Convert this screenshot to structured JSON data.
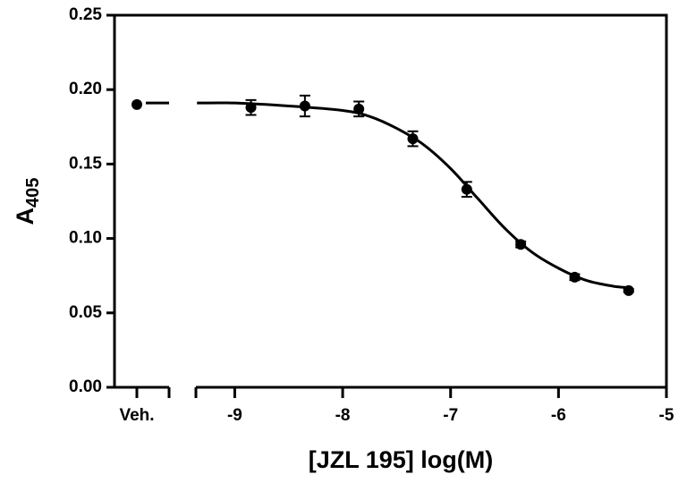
{
  "chart_data": {
    "type": "scatter",
    "x_label": "[JZL 195] log(M)",
    "y_label": "A",
    "y_label_subscript": "405",
    "vehicle": {
      "label": "Veh.",
      "value": 0.19
    },
    "xlim": [
      -9.36,
      -5
    ],
    "xticks": [
      -9,
      -8,
      -7,
      -6,
      -5
    ],
    "ylim": [
      0,
      0.25
    ],
    "yticks": [
      {
        "value": 0,
        "label": "0.00"
      },
      {
        "value": 0.05,
        "label": "0.05"
      },
      {
        "value": 0.1,
        "label": "0.10"
      },
      {
        "value": 0.15,
        "label": "0.15"
      },
      {
        "value": 0.2,
        "label": "0.20"
      },
      {
        "value": 0.25,
        "label": "0.25"
      }
    ],
    "color": "#000000",
    "series": [
      {
        "color": "#000000",
        "x": [
          -8.85,
          -8.35,
          -7.85,
          -7.35,
          -6.85,
          -6.35,
          -5.85,
          -5.35
        ],
        "values": [
          0.188,
          0.189,
          0.187,
          0.167,
          0.133,
          0.096,
          0.074,
          0.065
        ],
        "errors": [
          0.005,
          0.007,
          0.005,
          0.005,
          0.005,
          0.002,
          0.002,
          0.001
        ]
      }
    ],
    "fit": {
      "x": [
        -9.35,
        -9,
        -8.5,
        -8,
        -7.75,
        -7.5,
        -7.25,
        -7,
        -6.75,
        -6.5,
        -6.25,
        -6,
        -5.75,
        -5.5,
        -5.35
      ],
      "values": [
        0.191,
        0.191,
        0.189,
        0.186,
        0.182,
        0.174,
        0.163,
        0.147,
        0.127,
        0.107,
        0.091,
        0.08,
        0.072,
        0.068,
        0.067
      ]
    }
  }
}
